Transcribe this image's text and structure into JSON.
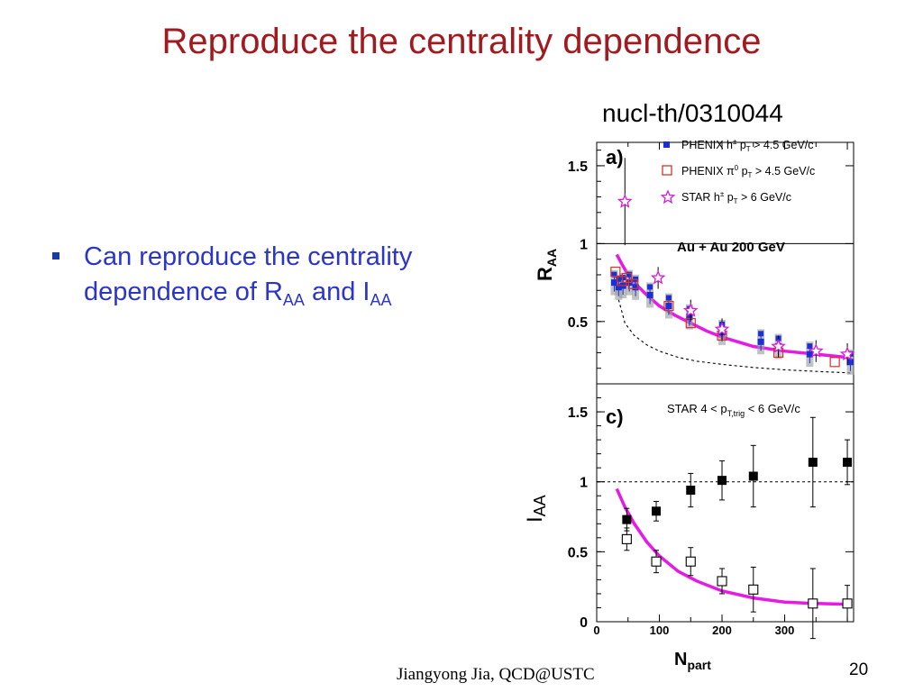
{
  "slide": {
    "title": "Reproduce the centrality dependence",
    "bullet": {
      "text_pre": "Can reproduce the centrality dependence of R",
      "sub1": "AA",
      "text_mid": " and I",
      "sub2": "AA"
    },
    "reference": "nucl-th/0310044",
    "footer": "Jiangyong Jia,  QCD@USTC",
    "page_number": "20"
  },
  "chart_data": [
    {
      "type": "scatter",
      "panel_label": "a)",
      "annotation": "Au + Au 200 GeV",
      "ylabel_main": "R",
      "ylabel_sub": "AA",
      "ylim": [
        0.1,
        1.65
      ],
      "xlim": [
        0,
        410
      ],
      "yticks": [
        "0.5",
        "1",
        "1.5"
      ],
      "legend": [
        {
          "label": "PHENIX h",
          "sup": "±",
          "mid": " p",
          "sub": "T",
          "cut": " > 4.5 GeV/c",
          "marker": "filled-square",
          "color": "#1a2fd6"
        },
        {
          "label": "PHENIX π",
          "sup": "0",
          "mid": "  p",
          "sub": "T",
          "cut": " > 4.5 GeV/c",
          "marker": "open-square",
          "color": "#d8322b"
        },
        {
          "label": "STAR h",
          "sup": "±",
          "mid": "  p",
          "sub": "T",
          "cut": " > 6 GeV/c",
          "marker": "open-star",
          "color": "#d61ad6"
        }
      ],
      "series": [
        {
          "name": "PHENIX h± pT > 4.5 GeV/c",
          "color": "#1a2fd6",
          "x": [
            28,
            35,
            42,
            52,
            62,
            85,
            115,
            148,
            200,
            262,
            290,
            340,
            405
          ],
          "y": [
            0.75,
            0.72,
            0.73,
            0.75,
            0.72,
            0.67,
            0.6,
            0.53,
            0.43,
            0.37,
            0.34,
            0.29,
            0.24
          ]
        },
        {
          "name": "PHENIX π0 pT > 4.5 GeV/c",
          "color": "#d8322b",
          "x": [
            30,
            40,
            48,
            58,
            115,
            150,
            200,
            290,
            380
          ],
          "y": [
            0.82,
            0.76,
            0.78,
            0.74,
            0.6,
            0.49,
            0.41,
            0.3,
            0.24
          ]
        },
        {
          "name": "STAR h± pT > 6 GeV/c",
          "color": "#d61ad6",
          "x": [
            45,
            98,
            150,
            200,
            290,
            350,
            400
          ],
          "y": [
            1.27,
            0.78,
            0.57,
            0.45,
            0.34,
            0.31,
            0.29
          ]
        },
        {
          "name": "model curve",
          "color": "#e619e6",
          "x": [
            32,
            40,
            50,
            60,
            80,
            100,
            125,
            150,
            175,
            200,
            225,
            250,
            300,
            350,
            400
          ],
          "y": [
            0.93,
            0.87,
            0.8,
            0.75,
            0.67,
            0.6,
            0.54,
            0.49,
            0.44,
            0.4,
            0.37,
            0.34,
            0.31,
            0.29,
            0.27
          ]
        },
        {
          "name": "dashed curve",
          "color": "#000000",
          "x": [
            35,
            45,
            60,
            80,
            100,
            130,
            160,
            200,
            250,
            300,
            350,
            405
          ],
          "y": [
            0.64,
            0.49,
            0.41,
            0.35,
            0.31,
            0.27,
            0.245,
            0.225,
            0.205,
            0.19,
            0.18,
            0.17
          ]
        }
      ]
    },
    {
      "type": "scatter",
      "panel_label": "c)",
      "annotation": "STAR 4 < p",
      "annotation_sub": "T,trig",
      "annotation_tail": " < 6 GeV/c",
      "ylabel_main": "I",
      "ylabel_sub": "AA",
      "xlabel_main": "N",
      "xlabel_sub": "part",
      "ylim": [
        0,
        1.7
      ],
      "xlim": [
        0,
        410
      ],
      "yticks": [
        "0",
        "0.5",
        "1",
        "1.5"
      ],
      "xticks": [
        "0",
        "100",
        "200",
        "300"
      ],
      "reference_line": 1,
      "series": [
        {
          "name": "central filled",
          "color": "#000000",
          "x": [
            48,
            95,
            150,
            200,
            250,
            345,
            400
          ],
          "y": [
            0.73,
            0.79,
            0.94,
            1.01,
            1.04,
            1.14,
            1.14
          ],
          "yerr": [
            0.08,
            0.07,
            0.12,
            0.14,
            0.22,
            0.32,
            0.16
          ]
        },
        {
          "name": "open",
          "color": "#000000",
          "x": [
            48,
            95,
            150,
            200,
            250,
            345,
            400
          ],
          "y": [
            0.59,
            0.43,
            0.43,
            0.29,
            0.23,
            0.13,
            0.13
          ],
          "yerr": [
            0.08,
            0.08,
            0.1,
            0.09,
            0.16,
            0.25,
            0.13
          ]
        },
        {
          "name": "model curve",
          "color": "#e619e6",
          "x": [
            32,
            45,
            60,
            80,
            100,
            130,
            160,
            200,
            250,
            300,
            350,
            400
          ],
          "y": [
            0.95,
            0.82,
            0.7,
            0.57,
            0.47,
            0.36,
            0.29,
            0.22,
            0.17,
            0.14,
            0.13,
            0.125
          ]
        }
      ]
    }
  ]
}
